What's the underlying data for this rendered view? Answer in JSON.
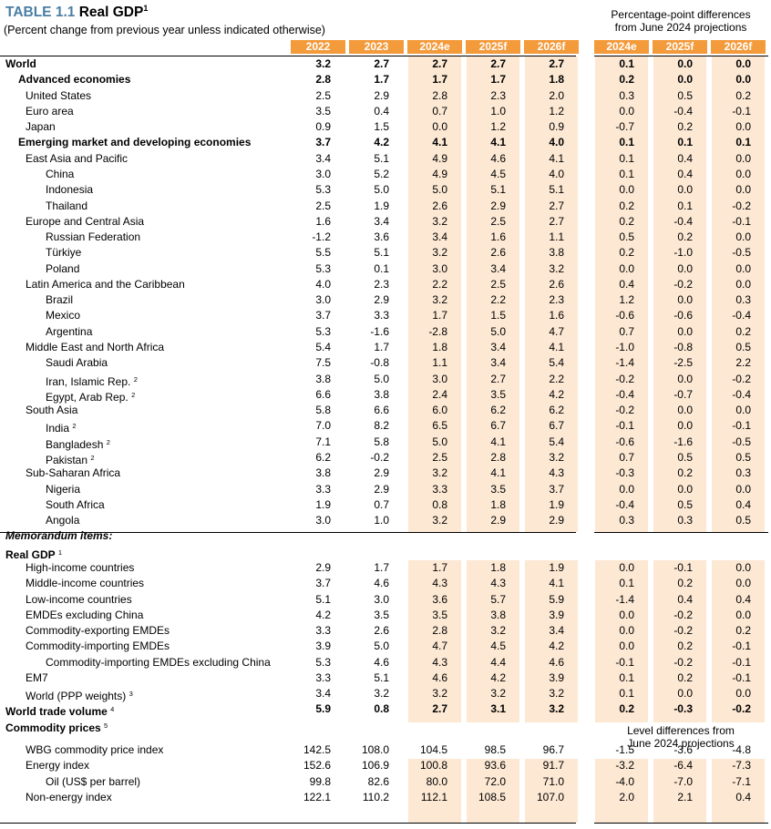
{
  "title": {
    "label": "TABLE 1.1",
    "text": "Real GDP",
    "sup": "1"
  },
  "subtitle": "(Percent change from previous year unless indicated otherwise)",
  "diff_header": [
    "Percentage-point differences",
    "from June 2024 projections"
  ],
  "level_header": [
    "Level differences from",
    "June 2024 projections"
  ],
  "columns": [
    "2022",
    "2023",
    "2024e",
    "2025f",
    "2026f"
  ],
  "diff_columns": [
    "2024e",
    "2025f",
    "2026f"
  ],
  "colors": {
    "header": "#f39a3b",
    "band": "#fce8d3",
    "title": "#4a7ea5"
  },
  "rows": [
    {
      "label": "World",
      "indent": 0,
      "style": "bold",
      "values": [
        "3.2",
        "2.7",
        "2.7",
        "2.7",
        "2.7"
      ],
      "diffs": [
        "0.1",
        "0.0",
        "0.0"
      ]
    },
    {
      "label": "Advanced economies",
      "indent": 1,
      "style": "bold",
      "values": [
        "2.8",
        "1.7",
        "1.7",
        "1.7",
        "1.8"
      ],
      "diffs": [
        "0.2",
        "0.0",
        "0.0"
      ]
    },
    {
      "label": "United States",
      "indent": 2,
      "values": [
        "2.5",
        "2.9",
        "2.8",
        "2.3",
        "2.0"
      ],
      "diffs": [
        "0.3",
        "0.5",
        "0.2"
      ]
    },
    {
      "label": "Euro area",
      "indent": 2,
      "values": [
        "3.5",
        "0.4",
        "0.7",
        "1.0",
        "1.2"
      ],
      "diffs": [
        "0.0",
        "-0.4",
        "-0.1"
      ]
    },
    {
      "label": "Japan",
      "indent": 2,
      "values": [
        "0.9",
        "1.5",
        "0.0",
        "1.2",
        "0.9"
      ],
      "diffs": [
        "-0.7",
        "0.2",
        "0.0"
      ]
    },
    {
      "label": "Emerging market and developing economies",
      "indent": 1,
      "style": "bold",
      "values": [
        "3.7",
        "4.2",
        "4.1",
        "4.1",
        "4.0"
      ],
      "diffs": [
        "0.1",
        "0.1",
        "0.1"
      ]
    },
    {
      "label": "East Asia and Pacific",
      "indent": 2,
      "values": [
        "3.4",
        "5.1",
        "4.9",
        "4.6",
        "4.1"
      ],
      "diffs": [
        "0.1",
        "0.4",
        "0.0"
      ]
    },
    {
      "label": "China",
      "indent": 3,
      "values": [
        "3.0",
        "5.2",
        "4.9",
        "4.5",
        "4.0"
      ],
      "diffs": [
        "0.1",
        "0.4",
        "0.0"
      ]
    },
    {
      "label": "Indonesia",
      "indent": 3,
      "values": [
        "5.3",
        "5.0",
        "5.0",
        "5.1",
        "5.1"
      ],
      "diffs": [
        "0.0",
        "0.0",
        "0.0"
      ]
    },
    {
      "label": "Thailand",
      "indent": 3,
      "values": [
        "2.5",
        "1.9",
        "2.6",
        "2.9",
        "2.7"
      ],
      "diffs": [
        "0.2",
        "0.1",
        "-0.2"
      ]
    },
    {
      "label": "Europe and Central Asia",
      "indent": 2,
      "values": [
        "1.6",
        "3.4",
        "3.2",
        "2.5",
        "2.7"
      ],
      "diffs": [
        "0.2",
        "-0.4",
        "-0.1"
      ]
    },
    {
      "label": "Russian Federation",
      "indent": 3,
      "values": [
        "-1.2",
        "3.6",
        "3.4",
        "1.6",
        "1.1"
      ],
      "diffs": [
        "0.5",
        "0.2",
        "0.0"
      ]
    },
    {
      "label": "Türkiye",
      "indent": 3,
      "values": [
        "5.5",
        "5.1",
        "3.2",
        "2.6",
        "3.8"
      ],
      "diffs": [
        "0.2",
        "-1.0",
        "-0.5"
      ]
    },
    {
      "label": "Poland",
      "indent": 3,
      "values": [
        "5.3",
        "0.1",
        "3.0",
        "3.4",
        "3.2"
      ],
      "diffs": [
        "0.0",
        "0.0",
        "0.0"
      ]
    },
    {
      "label": "Latin America and the Caribbean",
      "indent": 2,
      "values": [
        "4.0",
        "2.3",
        "2.2",
        "2.5",
        "2.6"
      ],
      "diffs": [
        "0.4",
        "-0.2",
        "0.0"
      ]
    },
    {
      "label": "Brazil",
      "indent": 3,
      "values": [
        "3.0",
        "2.9",
        "3.2",
        "2.2",
        "2.3"
      ],
      "diffs": [
        "1.2",
        "0.0",
        "0.3"
      ]
    },
    {
      "label": "Mexico",
      "indent": 3,
      "values": [
        "3.7",
        "3.3",
        "1.7",
        "1.5",
        "1.6"
      ],
      "diffs": [
        "-0.6",
        "-0.6",
        "-0.4"
      ]
    },
    {
      "label": "Argentina",
      "indent": 3,
      "values": [
        "5.3",
        "-1.6",
        "-2.8",
        "5.0",
        "4.7"
      ],
      "diffs": [
        "0.7",
        "0.0",
        "0.2"
      ]
    },
    {
      "label": "Middle East and North Africa",
      "indent": 2,
      "values": [
        "5.4",
        "1.7",
        "1.8",
        "3.4",
        "4.1"
      ],
      "diffs": [
        "-1.0",
        "-0.8",
        "0.5"
      ]
    },
    {
      "label": "Saudi Arabia",
      "indent": 3,
      "values": [
        "7.5",
        "-0.8",
        "1.1",
        "3.4",
        "5.4"
      ],
      "diffs": [
        "-1.4",
        "-2.5",
        "2.2"
      ]
    },
    {
      "label": "Iran, Islamic Rep.",
      "fn": "2",
      "indent": 3,
      "values": [
        "3.8",
        "5.0",
        "3.0",
        "2.7",
        "2.2"
      ],
      "diffs": [
        "-0.2",
        "0.0",
        "-0.2"
      ]
    },
    {
      "label": "Egypt, Arab Rep.",
      "fn": "2",
      "indent": 3,
      "values": [
        "6.6",
        "3.8",
        "2.4",
        "3.5",
        "4.2"
      ],
      "diffs": [
        "-0.4",
        "-0.7",
        "-0.4"
      ]
    },
    {
      "label": "South Asia",
      "indent": 2,
      "values": [
        "5.8",
        "6.6",
        "6.0",
        "6.2",
        "6.2"
      ],
      "diffs": [
        "-0.2",
        "0.0",
        "0.0"
      ]
    },
    {
      "label": "India",
      "fn": "2",
      "indent": 3,
      "values": [
        "7.0",
        "8.2",
        "6.5",
        "6.7",
        "6.7"
      ],
      "diffs": [
        "-0.1",
        "0.0",
        "-0.1"
      ]
    },
    {
      "label": "Bangladesh",
      "fn": "2",
      "indent": 3,
      "values": [
        "7.1",
        "5.8",
        "5.0",
        "4.1",
        "5.4"
      ],
      "diffs": [
        "-0.6",
        "-1.6",
        "-0.5"
      ]
    },
    {
      "label": "Pakistan",
      "fn": "2",
      "indent": 3,
      "values": [
        "6.2",
        "-0.2",
        "2.5",
        "2.8",
        "3.2"
      ],
      "diffs": [
        "0.7",
        "0.5",
        "0.5"
      ]
    },
    {
      "label": "Sub-Saharan Africa",
      "indent": 2,
      "values": [
        "3.8",
        "2.9",
        "3.2",
        "4.1",
        "4.3"
      ],
      "diffs": [
        "-0.3",
        "0.2",
        "0.3"
      ]
    },
    {
      "label": "Nigeria",
      "indent": 3,
      "values": [
        "3.3",
        "2.9",
        "3.3",
        "3.5",
        "3.7"
      ],
      "diffs": [
        "0.0",
        "0.0",
        "0.0"
      ]
    },
    {
      "label": "South Africa",
      "indent": 3,
      "values": [
        "1.9",
        "0.7",
        "0.8",
        "1.8",
        "1.9"
      ],
      "diffs": [
        "-0.4",
        "0.5",
        "0.4"
      ]
    },
    {
      "label": "Angola",
      "indent": 3,
      "values": [
        "3.0",
        "1.0",
        "3.2",
        "2.9",
        "2.9"
      ],
      "diffs": [
        "0.3",
        "0.3",
        "0.5"
      ]
    },
    {
      "label": "Memorandum items:",
      "indent": 0,
      "style": "bold-italic",
      "heading": true
    },
    {
      "label": "Real GDP",
      "fn": "1",
      "indent": 0,
      "style": "bold",
      "heading": true
    },
    {
      "label": "High-income countries",
      "indent": 2,
      "values": [
        "2.9",
        "1.7",
        "1.7",
        "1.8",
        "1.9"
      ],
      "diffs": [
        "0.0",
        "-0.1",
        "0.0"
      ]
    },
    {
      "label": "Middle-income countries",
      "indent": 2,
      "values": [
        "3.7",
        "4.6",
        "4.3",
        "4.3",
        "4.1"
      ],
      "diffs": [
        "0.1",
        "0.2",
        "0.0"
      ]
    },
    {
      "label": "Low-income countries",
      "indent": 2,
      "values": [
        "5.1",
        "3.0",
        "3.6",
        "5.7",
        "5.9"
      ],
      "diffs": [
        "-1.4",
        "0.4",
        "0.4"
      ]
    },
    {
      "label": "EMDEs excluding China",
      "indent": 2,
      "values": [
        "4.2",
        "3.5",
        "3.5",
        "3.8",
        "3.9"
      ],
      "diffs": [
        "0.0",
        "-0.2",
        "0.0"
      ]
    },
    {
      "label": "Commodity-exporting EMDEs",
      "indent": 2,
      "values": [
        "3.3",
        "2.6",
        "2.8",
        "3.2",
        "3.4"
      ],
      "diffs": [
        "0.0",
        "-0.2",
        "0.2"
      ]
    },
    {
      "label": "Commodity-importing EMDEs",
      "indent": 2,
      "values": [
        "3.9",
        "5.0",
        "4.7",
        "4.5",
        "4.2"
      ],
      "diffs": [
        "0.0",
        "0.2",
        "-0.1"
      ]
    },
    {
      "label": "Commodity-importing EMDEs excluding China",
      "indent": 3,
      "values": [
        "5.3",
        "4.6",
        "4.3",
        "4.4",
        "4.6"
      ],
      "diffs": [
        "-0.1",
        "-0.2",
        "-0.1"
      ]
    },
    {
      "label": "EM7",
      "indent": 2,
      "values": [
        "3.3",
        "5.1",
        "4.6",
        "4.2",
        "3.9"
      ],
      "diffs": [
        "0.1",
        "0.2",
        "-0.1"
      ]
    },
    {
      "label": "World (PPP weights)",
      "fn": "3",
      "indent": 2,
      "values": [
        "3.4",
        "3.2",
        "3.2",
        "3.2",
        "3.2"
      ],
      "diffs": [
        "0.1",
        "0.0",
        "0.0"
      ]
    },
    {
      "label": "World trade volume",
      "fn": "4",
      "indent": 0,
      "style": "bold",
      "values": [
        "5.9",
        "0.8",
        "2.7",
        "3.1",
        "3.2"
      ],
      "diffs": [
        "0.2",
        "-0.3",
        "-0.2"
      ]
    },
    {
      "label": "Commodity prices",
      "fn": "5",
      "indent": 0,
      "style": "bold",
      "heading": true
    },
    {
      "label": "WBG commodity price index",
      "indent": 2,
      "values": [
        "142.5",
        "108.0",
        "104.5",
        "98.5",
        "96.7"
      ],
      "diffs": [
        "-1.5",
        "-3.6",
        "-4.8"
      ]
    },
    {
      "label": "Energy index",
      "indent": 2,
      "values": [
        "152.6",
        "106.9",
        "100.8",
        "93.6",
        "91.7"
      ],
      "diffs": [
        "-3.2",
        "-6.4",
        "-7.3"
      ]
    },
    {
      "label": "Oil (US$ per barrel)",
      "indent": 3,
      "values": [
        "99.8",
        "82.6",
        "80.0",
        "72.0",
        "71.0"
      ],
      "diffs": [
        "-4.0",
        "-7.0",
        "-7.1"
      ]
    },
    {
      "label": "Non-energy index",
      "indent": 2,
      "values": [
        "122.1",
        "110.2",
        "112.1",
        "108.5",
        "107.0"
      ],
      "diffs": [
        "2.0",
        "2.1",
        "0.4"
      ]
    }
  ]
}
